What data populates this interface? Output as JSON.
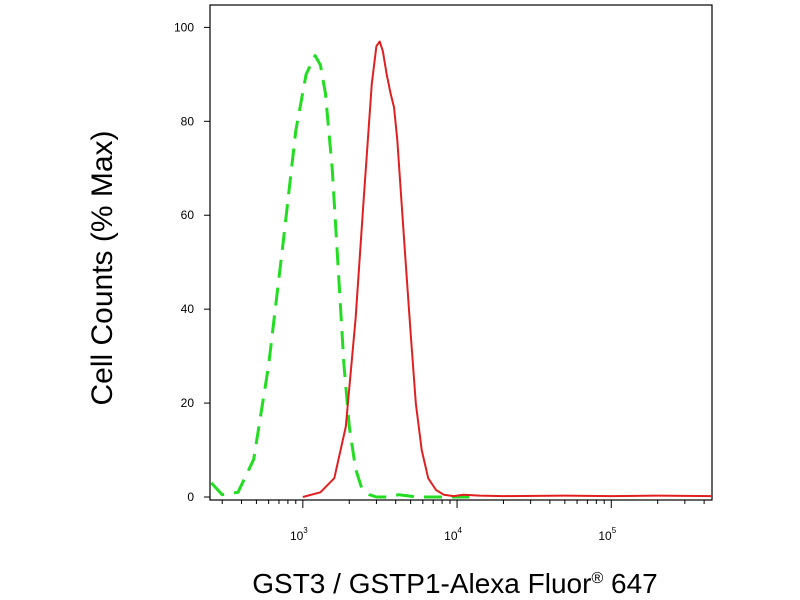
{
  "chart_data": {
    "type": "line",
    "xlabel_main": "GST3 / GSTP1-Alexa Fluor",
    "xlabel_mark": "®",
    "xlabel_tail": " 647",
    "ylabel": "Cell Counts (% Max)",
    "x_scale": "log",
    "xlim": [
      250,
      450000
    ],
    "ylim": [
      0,
      102
    ],
    "y_ticks": [
      0,
      20,
      40,
      60,
      80,
      100
    ],
    "x_ticks": [
      {
        "value": 1000,
        "base": "10",
        "exp": "3"
      },
      {
        "value": 10000,
        "base": "10",
        "exp": "4"
      },
      {
        "value": 100000,
        "base": "10",
        "exp": "5"
      }
    ],
    "grid": false,
    "series": [
      {
        "style": "dashed",
        "color": "#22dd22",
        "x": [
          255,
          300,
          380,
          480,
          600,
          750,
          900,
          1050,
          1200,
          1300,
          1400,
          1550,
          1700,
          1850,
          2000,
          2200,
          2400,
          2700,
          3000,
          3500,
          4200,
          5500,
          8000,
          12000
        ],
        "y": [
          3,
          0.5,
          1,
          8,
          28,
          55,
          78,
          90,
          94,
          92,
          86,
          70,
          48,
          28,
          15,
          6,
          2,
          0.5,
          0,
          0,
          0.5,
          0,
          0,
          0
        ]
      },
      {
        "style": "solid",
        "color": "#e02020",
        "x": [
          1000,
          1300,
          1600,
          1900,
          2200,
          2500,
          2800,
          3000,
          3150,
          3300,
          3500,
          3700,
          3900,
          4100,
          4300,
          4600,
          5000,
          5400,
          5900,
          6500,
          7300,
          8200,
          9500,
          11000,
          14000,
          20000,
          50000,
          100000,
          200000,
          450000
        ],
        "y": [
          0,
          1,
          4,
          15,
          38,
          65,
          88,
          96,
          97,
          95,
          90,
          86,
          83,
          76,
          66,
          52,
          35,
          20,
          10,
          4,
          1.5,
          0.5,
          0.2,
          0.5,
          0.3,
          0.2,
          0.3,
          0.2,
          0.3,
          0.2
        ]
      }
    ]
  }
}
